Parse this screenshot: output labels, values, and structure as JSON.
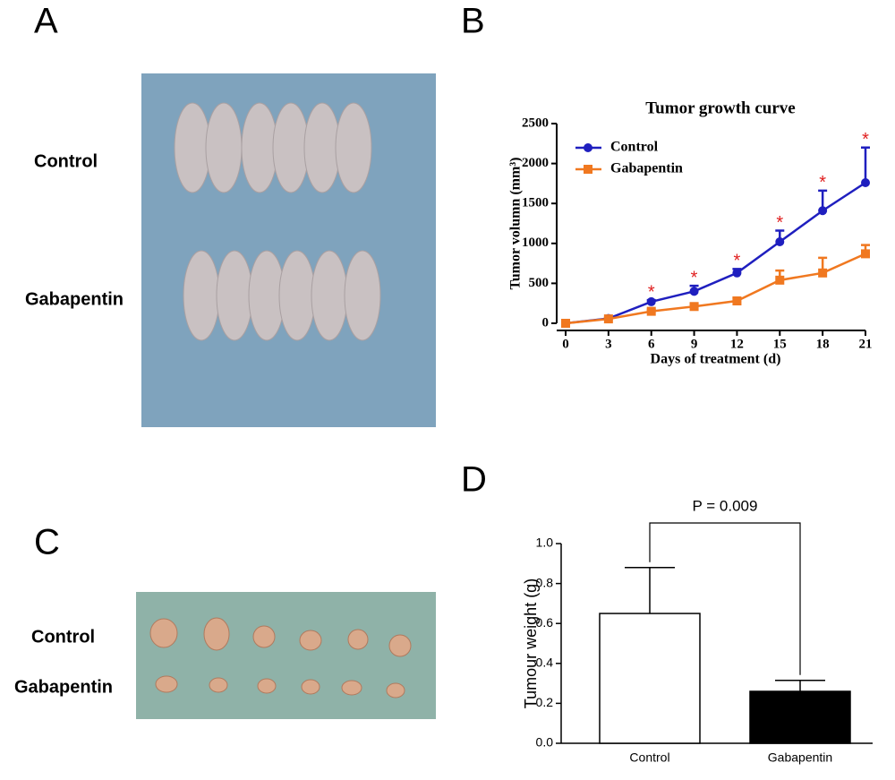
{
  "panels": {
    "a": {
      "letter": "A",
      "labels": [
        "Control",
        "Gabapentin"
      ]
    },
    "b": {
      "letter": "B"
    },
    "c": {
      "letter": "C",
      "labels": [
        "Control",
        "Gabapentin"
      ]
    },
    "d": {
      "letter": "D"
    }
  },
  "chart_data": [
    {
      "type": "line",
      "title": "Tumor growth curve",
      "x_label": "Days of treatment (d)",
      "y_label": "Tumor volumn (mm³)",
      "x": [
        0,
        3,
        6,
        9,
        12,
        15,
        18,
        21
      ],
      "series": [
        {
          "name": "Control",
          "color": "#1f1fbf",
          "marker": "circle",
          "values": [
            0,
            60,
            270,
            400,
            630,
            1020,
            1410,
            1760
          ],
          "errors": [
            0,
            10,
            20,
            70,
            50,
            140,
            250,
            440
          ]
        },
        {
          "name": "Gabapentin",
          "color": "#f07820",
          "marker": "square",
          "values": [
            0,
            55,
            150,
            210,
            280,
            540,
            630,
            870
          ],
          "errors": [
            0,
            10,
            20,
            30,
            40,
            120,
            190,
            110
          ]
        }
      ],
      "xlim": [
        0,
        21
      ],
      "xticks": [
        0,
        3,
        6,
        9,
        12,
        15,
        18,
        21
      ],
      "ylim": [
        0,
        2500
      ],
      "yticks": [
        0,
        500,
        1000,
        1500,
        2000,
        2500
      ],
      "significance": {
        "label": "*",
        "color": "#e02020",
        "x": [
          6,
          9,
          12,
          15,
          18,
          21
        ]
      },
      "legend": "upper left"
    },
    {
      "type": "bar",
      "categories": [
        "Control",
        "Gabapentin"
      ],
      "values": [
        0.65,
        0.26
      ],
      "errors": [
        0.23,
        0.055
      ],
      "colors": [
        "#ffffff",
        "#000000"
      ],
      "y_label": "Tumour weight (g)",
      "ylim": [
        0,
        1
      ],
      "yticks": [
        {
          "value": 0,
          "label": "0.0"
        },
        0.2,
        0.4,
        0.6,
        0.8,
        {
          "value": 1,
          "label": "1.0"
        }
      ],
      "annotation": "P = 0.009"
    }
  ]
}
